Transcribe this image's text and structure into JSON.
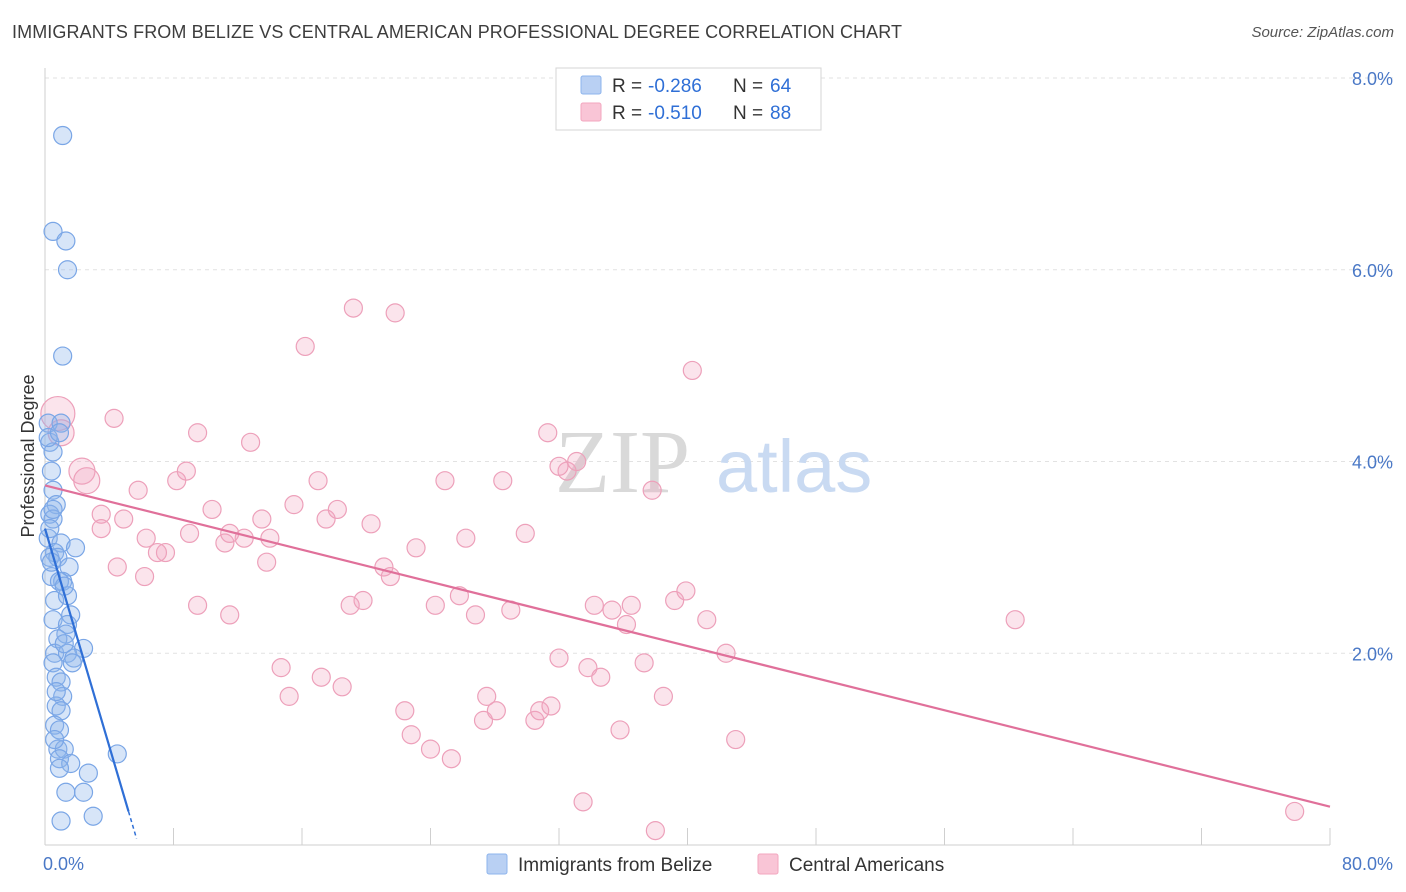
{
  "title": "IMMIGRANTS FROM BELIZE VS CENTRAL AMERICAN PROFESSIONAL DEGREE CORRELATION CHART",
  "source": "Source: ZipAtlas.com",
  "watermark": {
    "zip": "ZIP",
    "atlas": "atlas"
  },
  "colors": {
    "blue": "#8db4ec",
    "blue_line": "#2f6fd6",
    "pink": "#f3a6bf",
    "pink_line": "#e0709a",
    "tick": "#4a78c6"
  },
  "legend": {
    "rows": [
      {
        "r_label": "R =",
        "r_value": "-0.286",
        "n_label": "N =",
        "n_value": "64"
      },
      {
        "r_label": "R =",
        "r_value": "-0.510",
        "n_label": "N =",
        "n_value": "88"
      }
    ]
  },
  "chart_data": {
    "type": "scatter",
    "title": "IMMIGRANTS FROM BELIZE VS CENTRAL AMERICAN PROFESSIONAL DEGREE CORRELATION CHART",
    "xlabel": "",
    "ylabel": "Professional Degree",
    "xlim": [
      0,
      80
    ],
    "ylim": [
      0,
      8
    ],
    "x_tick_labels": [
      "0.0%",
      "80.0%"
    ],
    "y_ticks": [
      2,
      4,
      6,
      8
    ],
    "y_tick_labels": [
      "2.0%",
      "4.0%",
      "6.0%",
      "8.0%"
    ],
    "grid": true,
    "legend_position": "top-center",
    "series": [
      {
        "name": "Immigrants from Belize",
        "color": "#8db4ec",
        "trend": {
          "x0": 0,
          "y0": 3.3,
          "x1": 5.2,
          "y1": 0.35,
          "dash_to_x": 5.7
        },
        "points": [
          [
            1.1,
            7.4
          ],
          [
            0.5,
            6.4
          ],
          [
            1.3,
            6.3
          ],
          [
            1.4,
            6.0
          ],
          [
            1.1,
            5.1
          ],
          [
            0.2,
            4.4
          ],
          [
            1.0,
            4.4
          ],
          [
            0.3,
            4.2
          ],
          [
            0.5,
            4.1
          ],
          [
            0.2,
            4.25
          ],
          [
            0.4,
            3.9
          ],
          [
            0.5,
            3.7
          ],
          [
            0.7,
            3.55
          ],
          [
            0.3,
            3.45
          ],
          [
            0.5,
            3.4
          ],
          [
            0.2,
            3.2
          ],
          [
            1.0,
            3.15
          ],
          [
            1.9,
            3.1
          ],
          [
            0.6,
            3.05
          ],
          [
            0.3,
            3.0
          ],
          [
            0.8,
            3.0
          ],
          [
            1.5,
            2.9
          ],
          [
            0.4,
            2.8
          ],
          [
            1.1,
            2.75
          ],
          [
            0.9,
            2.75
          ],
          [
            0.6,
            2.55
          ],
          [
            1.4,
            2.6
          ],
          [
            1.6,
            2.4
          ],
          [
            0.5,
            2.35
          ],
          [
            1.4,
            2.3
          ],
          [
            1.3,
            2.2
          ],
          [
            0.8,
            2.15
          ],
          [
            2.4,
            2.05
          ],
          [
            0.6,
            2.0
          ],
          [
            1.4,
            2.0
          ],
          [
            1.8,
            1.95
          ],
          [
            0.5,
            1.9
          ],
          [
            1.7,
            1.9
          ],
          [
            0.7,
            1.75
          ],
          [
            1.0,
            1.7
          ],
          [
            1.1,
            1.55
          ],
          [
            0.7,
            1.45
          ],
          [
            1.0,
            1.4
          ],
          [
            0.6,
            1.25
          ],
          [
            0.9,
            1.2
          ],
          [
            0.8,
            1.0
          ],
          [
            1.2,
            1.0
          ],
          [
            4.5,
            0.95
          ],
          [
            0.9,
            0.9
          ],
          [
            1.6,
            0.85
          ],
          [
            0.9,
            0.8
          ],
          [
            2.7,
            0.75
          ],
          [
            1.3,
            0.55
          ],
          [
            2.4,
            0.55
          ],
          [
            1.0,
            0.25
          ],
          [
            3.0,
            0.3
          ],
          [
            0.3,
            3.3
          ],
          [
            0.4,
            2.95
          ],
          [
            1.2,
            2.1
          ],
          [
            0.7,
            1.6
          ],
          [
            0.5,
            3.5
          ],
          [
            0.9,
            4.3
          ],
          [
            1.2,
            2.7
          ],
          [
            0.6,
            1.1
          ]
        ]
      },
      {
        "name": "Central Americans",
        "color": "#f3a6bf",
        "trend": {
          "x0": 0,
          "y0": 3.75,
          "x1": 80,
          "y1": 0.4
        },
        "points": [
          [
            0.8,
            4.5
          ],
          [
            1.0,
            4.3
          ],
          [
            2.3,
            3.9
          ],
          [
            2.6,
            3.8
          ],
          [
            4.3,
            4.45
          ],
          [
            3.5,
            3.45
          ],
          [
            4.9,
            3.4
          ],
          [
            5.8,
            3.7
          ],
          [
            3.5,
            3.3
          ],
          [
            4.5,
            2.9
          ],
          [
            6.3,
            3.2
          ],
          [
            6.2,
            2.8
          ],
          [
            7.5,
            3.05
          ],
          [
            7.0,
            3.05
          ],
          [
            8.2,
            3.8
          ],
          [
            8.8,
            3.9
          ],
          [
            9.5,
            4.3
          ],
          [
            10.4,
            3.5
          ],
          [
            11.2,
            3.15
          ],
          [
            11.5,
            3.25
          ],
          [
            12.4,
            3.2
          ],
          [
            12.8,
            4.2
          ],
          [
            13.5,
            3.4
          ],
          [
            13.8,
            2.95
          ],
          [
            9.5,
            2.5
          ],
          [
            11.5,
            2.4
          ],
          [
            14.7,
            1.85
          ],
          [
            15.2,
            1.55
          ],
          [
            15.5,
            3.55
          ],
          [
            16.2,
            5.2
          ],
          [
            17.0,
            3.8
          ],
          [
            17.2,
            1.75
          ],
          [
            17.5,
            3.4
          ],
          [
            18.2,
            3.5
          ],
          [
            18.5,
            1.65
          ],
          [
            19.0,
            2.5
          ],
          [
            19.2,
            5.6
          ],
          [
            19.8,
            2.55
          ],
          [
            20.3,
            3.35
          ],
          [
            21.1,
            2.9
          ],
          [
            21.5,
            2.8
          ],
          [
            21.8,
            5.55
          ],
          [
            22.4,
            1.4
          ],
          [
            22.8,
            1.15
          ],
          [
            23.1,
            3.1
          ],
          [
            24.0,
            1.0
          ],
          [
            24.3,
            2.5
          ],
          [
            24.9,
            3.8
          ],
          [
            25.3,
            0.9
          ],
          [
            25.8,
            2.6
          ],
          [
            26.2,
            3.2
          ],
          [
            26.8,
            2.4
          ],
          [
            27.3,
            1.3
          ],
          [
            27.5,
            1.55
          ],
          [
            28.1,
            1.4
          ],
          [
            28.5,
            3.8
          ],
          [
            29.0,
            2.45
          ],
          [
            29.9,
            3.25
          ],
          [
            30.5,
            1.3
          ],
          [
            30.8,
            1.4
          ],
          [
            31.3,
            4.3
          ],
          [
            31.5,
            1.45
          ],
          [
            32.0,
            1.95
          ],
          [
            32.5,
            3.9
          ],
          [
            33.1,
            4.0
          ],
          [
            33.5,
            0.45
          ],
          [
            33.8,
            1.85
          ],
          [
            34.2,
            2.5
          ],
          [
            34.6,
            1.75
          ],
          [
            35.3,
            2.45
          ],
          [
            35.8,
            1.2
          ],
          [
            36.2,
            2.3
          ],
          [
            36.5,
            2.5
          ],
          [
            37.3,
            1.9
          ],
          [
            37.8,
            3.7
          ],
          [
            38.0,
            0.15
          ],
          [
            38.5,
            1.55
          ],
          [
            39.2,
            2.55
          ],
          [
            39.9,
            2.65
          ],
          [
            40.3,
            4.95
          ],
          [
            41.2,
            2.35
          ],
          [
            42.4,
            2.0
          ],
          [
            43.0,
            1.1
          ],
          [
            60.4,
            2.35
          ],
          [
            77.8,
            0.35
          ],
          [
            32.0,
            3.95
          ],
          [
            14.0,
            3.2
          ],
          [
            9.0,
            3.25
          ]
        ]
      }
    ]
  },
  "bottom_legend": [
    {
      "label": "Immigrants from Belize"
    },
    {
      "label": "Central Americans"
    }
  ]
}
